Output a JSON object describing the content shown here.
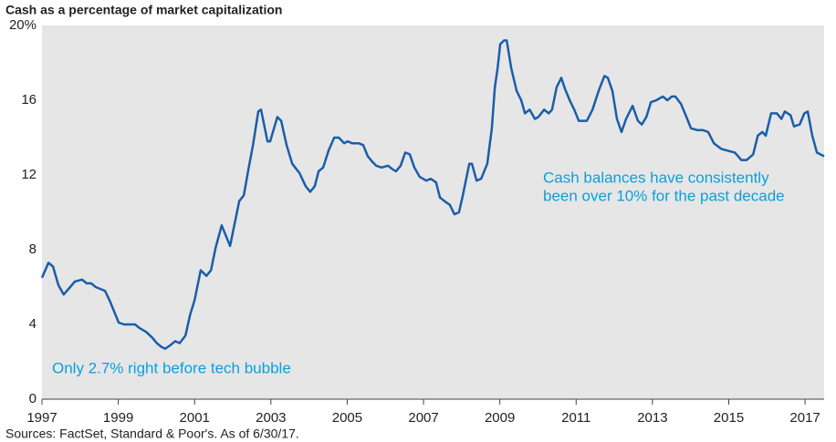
{
  "chart_data": {
    "type": "line",
    "title": "Cash as a percentage of market capitalization",
    "source": "Sources: FactSet, Standard & Poor's. As of 6/30/17.",
    "annotations": [
      "Only 2.7% right before tech bubble",
      "Cash balances have consistently",
      "been over 10% for the past decade"
    ],
    "annotation_color": "#0aa0dc",
    "background": "#e6e6e6",
    "grid": false,
    "xlim": [
      1997,
      2017.5
    ],
    "xticks": [
      1997,
      1999,
      2001,
      2003,
      2005,
      2007,
      2009,
      2011,
      2013,
      2015,
      2017
    ],
    "ylim": [
      0,
      20
    ],
    "yticks": [
      0,
      4,
      8,
      12,
      16,
      {
        "value": 20,
        "label": "20%"
      }
    ],
    "series": [
      {
        "name": "Cash as a percentage of market capitalization",
        "color": "#1a5ea8",
        "x": [
          1997.0,
          1997.17,
          1997.29,
          1997.43,
          1997.57,
          1997.74,
          1997.86,
          1998.05,
          1998.17,
          1998.29,
          1998.41,
          1998.65,
          1998.77,
          1998.89,
          1999.01,
          1999.15,
          1999.25,
          1999.44,
          1999.56,
          1999.73,
          1999.89,
          2000.01,
          2000.13,
          2000.23,
          2000.37,
          2000.49,
          2000.61,
          2000.76,
          2000.88,
          2001.0,
          2001.16,
          2001.31,
          2001.43,
          2001.55,
          2001.71,
          2001.93,
          2002.17,
          2002.29,
          2002.41,
          2002.53,
          2002.67,
          2002.74,
          2002.91,
          2002.98,
          2003.17,
          2003.27,
          2003.41,
          2003.56,
          2003.75,
          2003.91,
          2004.03,
          2004.15,
          2004.25,
          2004.37,
          2004.51,
          2004.66,
          2004.78,
          2004.92,
          2005.01,
          2005.13,
          2005.3,
          2005.42,
          2005.54,
          2005.66,
          2005.76,
          2005.9,
          2006.07,
          2006.19,
          2006.28,
          2006.4,
          2006.52,
          2006.64,
          2006.76,
          2006.9,
          2007.07,
          2007.19,
          2007.33,
          2007.43,
          2007.55,
          2007.69,
          2007.81,
          2007.93,
          2008.03,
          2008.1,
          2008.2,
          2008.27,
          2008.39,
          2008.51,
          2008.67,
          2008.79,
          2008.87,
          2008.94,
          2009.01,
          2009.11,
          2009.18,
          2009.3,
          2009.44,
          2009.56,
          2009.66,
          2009.78,
          2009.92,
          2010.01,
          2010.16,
          2010.28,
          2010.37,
          2010.49,
          2010.61,
          2010.71,
          2010.83,
          2010.95,
          2011.07,
          2011.28,
          2011.43,
          2011.59,
          2011.74,
          2011.83,
          2011.95,
          2012.07,
          2012.19,
          2012.31,
          2012.48,
          2012.62,
          2012.72,
          2012.84,
          2012.96,
          2013.1,
          2013.27,
          2013.39,
          2013.51,
          2013.6,
          2013.75,
          2013.89,
          2014.01,
          2014.18,
          2014.32,
          2014.46,
          2014.61,
          2014.8,
          2014.97,
          2015.16,
          2015.33,
          2015.47,
          2015.64,
          2015.76,
          2015.88,
          2015.97,
          2016.11,
          2016.26,
          2016.38,
          2016.47,
          2016.62,
          2016.71,
          2016.86,
          2016.98,
          2017.07,
          2017.19,
          2017.31,
          2017.5
        ],
        "values": [
          6.5,
          7.3,
          7.1,
          6.1,
          5.6,
          6.0,
          6.3,
          6.4,
          6.2,
          6.2,
          6.0,
          5.8,
          5.3,
          4.7,
          4.1,
          4.0,
          4.0,
          4.0,
          3.8,
          3.6,
          3.3,
          3.0,
          2.8,
          2.7,
          2.9,
          3.1,
          3.0,
          3.4,
          4.5,
          5.3,
          6.9,
          6.6,
          6.9,
          8.1,
          9.3,
          8.2,
          10.6,
          10.9,
          12.3,
          13.6,
          15.4,
          15.5,
          13.8,
          13.8,
          15.1,
          14.9,
          13.6,
          12.6,
          12.1,
          11.4,
          11.1,
          11.4,
          12.2,
          12.4,
          13.3,
          14.0,
          14.0,
          13.7,
          13.8,
          13.7,
          13.7,
          13.6,
          13.0,
          12.7,
          12.5,
          12.4,
          12.5,
          12.3,
          12.2,
          12.5,
          13.2,
          13.1,
          12.4,
          11.9,
          11.7,
          11.8,
          11.6,
          10.8,
          10.6,
          10.4,
          9.9,
          10.0,
          10.9,
          11.6,
          12.6,
          12.6,
          11.7,
          11.8,
          12.6,
          14.5,
          16.7,
          17.7,
          19.0,
          19.2,
          19.2,
          17.7,
          16.5,
          16.0,
          15.3,
          15.5,
          15.0,
          15.1,
          15.5,
          15.3,
          15.5,
          16.7,
          17.2,
          16.6,
          16.0,
          15.5,
          14.9,
          14.9,
          15.5,
          16.5,
          17.3,
          17.2,
          16.5,
          15.0,
          14.3,
          15.0,
          15.7,
          14.9,
          14.7,
          15.1,
          15.9,
          16.0,
          16.2,
          16.0,
          16.2,
          16.2,
          15.8,
          15.1,
          14.5,
          14.4,
          14.4,
          14.3,
          13.7,
          13.4,
          13.3,
          13.2,
          12.8,
          12.8,
          13.1,
          14.1,
          14.3,
          14.1,
          15.3,
          15.3,
          15.0,
          15.4,
          15.2,
          14.6,
          14.7,
          15.3,
          15.4,
          14.1,
          13.2,
          13.0
        ]
      }
    ]
  }
}
